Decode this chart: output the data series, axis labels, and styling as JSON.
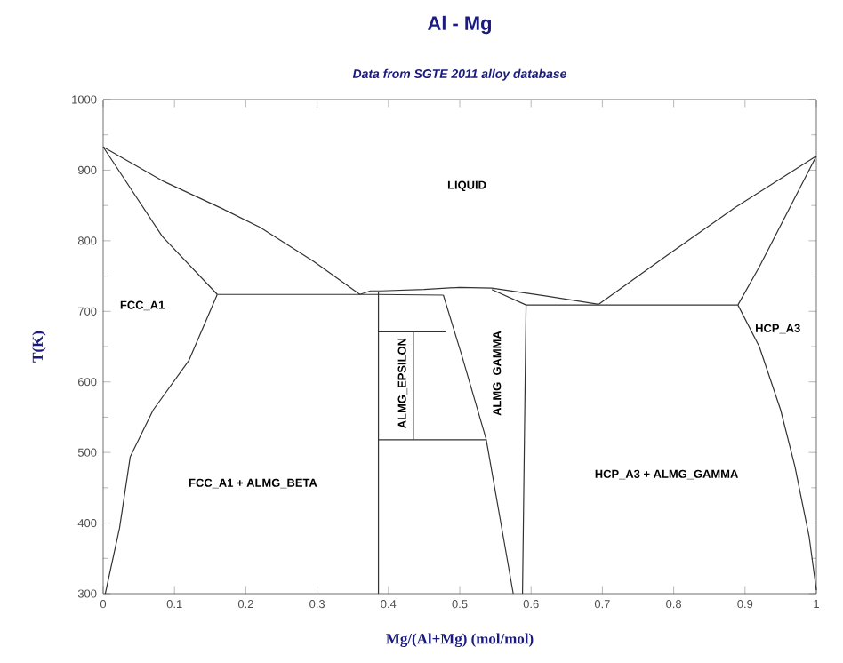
{
  "chart_data": {
    "type": "line",
    "title": "Al - Mg",
    "subtitle": "Data from SGTE 2011 alloy database",
    "xlabel": "Mg/(Al+Mg) (mol/mol)",
    "ylabel": "T(K)",
    "xlim": [
      0,
      1
    ],
    "ylim": [
      300,
      1000
    ],
    "xticks": [
      0,
      0.1,
      0.2,
      0.3,
      0.4,
      0.5,
      0.6,
      0.7,
      0.8,
      0.9,
      1
    ],
    "yticks": [
      300,
      400,
      500,
      600,
      700,
      800,
      900,
      1000
    ],
    "series": [
      {
        "color": "#333333",
        "x": [
          0,
          0.085,
          0.17,
          0.22,
          0.295,
          0.36
        ],
        "values": [
          933,
          884,
          844,
          819,
          771,
          724
        ]
      },
      {
        "color": "#333333",
        "x": [
          0,
          0.083,
          0.16
        ],
        "values": [
          933,
          806,
          724
        ]
      },
      {
        "color": "#333333",
        "x": [
          0.16,
          0.12,
          0.07,
          0.038,
          0.023,
          0.003
        ],
        "values": [
          724,
          630,
          560,
          494,
          393,
          300
        ]
      },
      {
        "color": "#333333",
        "x": [
          0.16,
          0.36,
          0.386,
          0.477
        ],
        "values": [
          724,
          724,
          724,
          723
        ]
      },
      {
        "color": "#333333",
        "x": [
          0.386,
          0.386
        ],
        "values": [
          300,
          727
        ]
      },
      {
        "color": "#333333",
        "x": [
          0.36,
          0.375,
          0.39,
          0.45,
          0.5,
          0.545,
          0.62,
          0.695
        ],
        "values": [
          724,
          729,
          729,
          731,
          734,
          733,
          722,
          710
        ]
      },
      {
        "color": "#333333",
        "x": [
          0.477,
          0.503,
          0.537,
          0.575
        ],
        "values": [
          723,
          637,
          519,
          300
        ]
      },
      {
        "color": "#333333",
        "x": [
          0.545,
          0.593,
          0.588
        ],
        "values": [
          731,
          709,
          300
        ]
      },
      {
        "color": "#333333",
        "x": [
          0.593,
          0.89
        ],
        "values": [
          709,
          709
        ]
      },
      {
        "color": "#333333",
        "x": [
          0.695,
          0.786,
          0.886,
          1
        ],
        "values": [
          710,
          776,
          847,
          920
        ]
      },
      {
        "color": "#333333",
        "x": [
          0.89,
          0.92,
          1
        ],
        "values": [
          709,
          763,
          920
        ]
      },
      {
        "color": "#333333",
        "x": [
          0.89,
          0.92,
          0.95,
          0.97,
          0.99,
          1
        ],
        "values": [
          709,
          650,
          560,
          480,
          380,
          305
        ]
      },
      {
        "color": "#333333",
        "x": [
          0.386,
          0.48
        ],
        "values": [
          671,
          671
        ]
      },
      {
        "color": "#333333",
        "x": [
          0.435,
          0.435
        ],
        "values": [
          671,
          518
        ]
      },
      {
        "color": "#333333",
        "x": [
          0.386,
          0.537
        ],
        "values": [
          518,
          518
        ]
      }
    ],
    "annotations": [
      "LIQUID",
      "FCC_A1",
      "ALMG_EPSILON",
      "ALMG_GAMMA",
      "HCP_A3",
      "FCC_A1 + ALMG_BETA",
      "HCP_A3 + ALMG_GAMMA"
    ]
  }
}
